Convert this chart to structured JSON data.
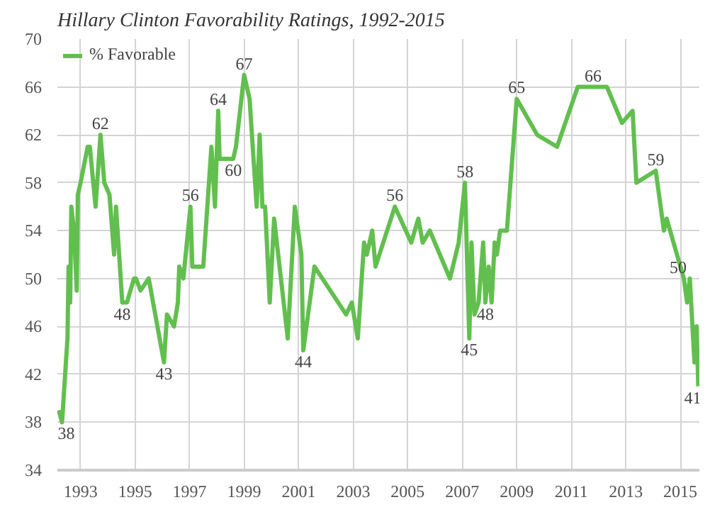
{
  "chart_data": {
    "type": "line",
    "title": "Hillary Clinton Favorability Ratings, 1992-2015",
    "series": [
      {
        "name": "% Favorable",
        "color": "#62bf4f",
        "x": [
          1992.2,
          1992.32,
          1992.52,
          1992.56,
          1992.62,
          1992.66,
          1992.76,
          1992.86,
          1992.9,
          1993.0,
          1993.26,
          1993.34,
          1993.55,
          1993.73,
          1993.87,
          1994.06,
          1994.23,
          1994.3,
          1994.53,
          1994.7,
          1994.96,
          1995.03,
          1995.2,
          1995.5,
          1996.06,
          1996.17,
          1996.43,
          1996.57,
          1996.62,
          1996.77,
          1997.03,
          1997.1,
          1997.5,
          1997.8,
          1997.93,
          1998.05,
          1998.1,
          1998.6,
          1998.7,
          1999.0,
          1999.2,
          1999.46,
          1999.57,
          1999.67,
          1999.77,
          1999.94,
          2000.1,
          2000.6,
          2000.86,
          2001.1,
          2001.17,
          2001.58,
          2002.74,
          2002.95,
          2003.17,
          2003.4,
          2003.5,
          2003.7,
          2003.82,
          2004.53,
          2005.13,
          2005.39,
          2005.55,
          2005.81,
          2006.55,
          2006.87,
          2007.1,
          2007.26,
          2007.34,
          2007.45,
          2007.6,
          2007.77,
          2007.85,
          2007.97,
          2008.08,
          2008.19,
          2008.27,
          2008.39,
          2008.64,
          2009.0,
          2009.75,
          2010.48,
          2011.24,
          2012.31,
          2012.86,
          2013.25,
          2013.39,
          2014.1,
          2014.4,
          2014.5,
          2015.13,
          2015.25,
          2015.35,
          2015.52,
          2015.6,
          2015.66
        ],
        "values": [
          39,
          38,
          45,
          51,
          48,
          56,
          54,
          49,
          57,
          58,
          61,
          61,
          56,
          62,
          58,
          57,
          52,
          56,
          48,
          48,
          50,
          50,
          49,
          50,
          43,
          47,
          46,
          48,
          51,
          50,
          56,
          51,
          51,
          61,
          56,
          64,
          60,
          60,
          61,
          67,
          65,
          56,
          62,
          56,
          56,
          48,
          55,
          45,
          56,
          52,
          44,
          51,
          47,
          48,
          45,
          53,
          52,
          54,
          51,
          56,
          53,
          55,
          53,
          54,
          50,
          53,
          58,
          45,
          53,
          47,
          48,
          53,
          48,
          51,
          48,
          53,
          52,
          54,
          54,
          65,
          62,
          61,
          66,
          66,
          63,
          64,
          58,
          59,
          54,
          55,
          50,
          48,
          50,
          43,
          46,
          41
        ]
      }
    ],
    "xlim": [
      1992.15,
      2015.7
    ],
    "ylim": [
      34,
      70
    ],
    "xticks": [
      1993,
      1995,
      1997,
      1999,
      2001,
      2003,
      2005,
      2007,
      2009,
      2011,
      2013,
      2015
    ],
    "yticks": [
      34,
      38,
      42,
      46,
      50,
      54,
      58,
      62,
      66,
      70
    ],
    "grid": true,
    "legend": "top left",
    "annotations": [
      {
        "text": "38",
        "x": 1992.32,
        "y": 38
      },
      {
        "text": "62",
        "x": 1993.73,
        "y": 62
      },
      {
        "text": "48",
        "x": 1994.53,
        "y": 48
      },
      {
        "text": "43",
        "x": 1996.06,
        "y": 43
      },
      {
        "text": "56",
        "x": 1997.03,
        "y": 56
      },
      {
        "text": "64",
        "x": 1998.05,
        "y": 64
      },
      {
        "text": "60",
        "x": 1998.6,
        "y": 60
      },
      {
        "text": "67",
        "x": 1999.0,
        "y": 67
      },
      {
        "text": "44",
        "x": 2001.17,
        "y": 44
      },
      {
        "text": "56",
        "x": 2004.53,
        "y": 56
      },
      {
        "text": "58",
        "x": 2007.1,
        "y": 58
      },
      {
        "text": "45",
        "x": 2007.26,
        "y": 45
      },
      {
        "text": "48",
        "x": 2007.85,
        "y": 48
      },
      {
        "text": "65",
        "x": 2009.0,
        "y": 65
      },
      {
        "text": "66",
        "x": 2011.8,
        "y": 66
      },
      {
        "text": "59",
        "x": 2014.1,
        "y": 59
      },
      {
        "text": "50",
        "x": 2015.13,
        "y": 50
      },
      {
        "text": "41",
        "x": 2015.66,
        "y": 41
      }
    ]
  }
}
